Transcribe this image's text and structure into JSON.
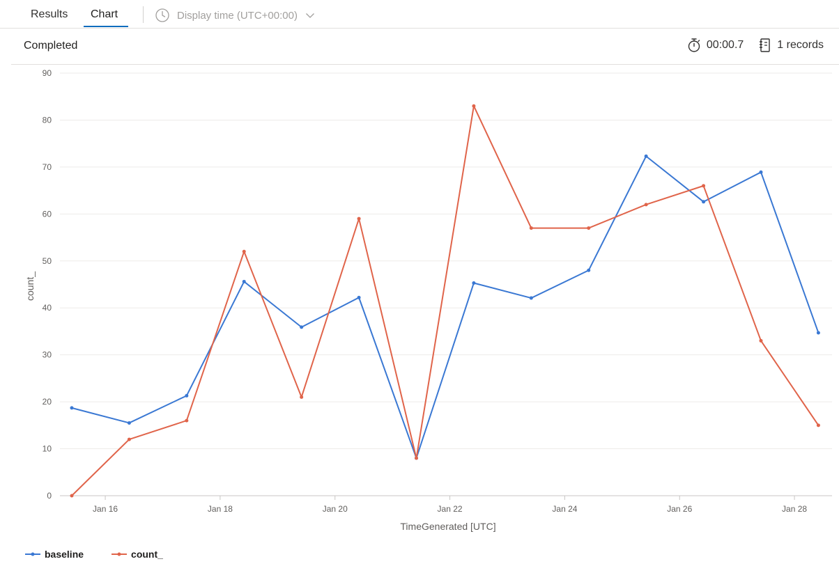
{
  "tabs": [
    {
      "label": "Results",
      "active": false
    },
    {
      "label": "Chart",
      "active": true
    }
  ],
  "display_time": {
    "label": "Display time (UTC+00:00)",
    "icon": "clock-icon"
  },
  "status": {
    "label": "Completed",
    "duration": "00:00.7",
    "records": "1 records",
    "duration_icon": "stopwatch-icon",
    "records_icon": "document-icon"
  },
  "colors": {
    "baseline": "#3a78d3",
    "count": "#e0644a",
    "accent": "#0f6cbd"
  },
  "chart_data": {
    "type": "line",
    "xlabel": "TimeGenerated [UTC]",
    "ylabel": "count_",
    "ylim": [
      0,
      90
    ],
    "yticks": [
      0,
      10,
      20,
      30,
      40,
      50,
      60,
      70,
      80,
      90
    ],
    "xlim": [
      "2024-01-15T10:00",
      "2024-01-28T12:30"
    ],
    "xticks": [
      {
        "date": "2024-01-16T00:00",
        "label": "Jan 16"
      },
      {
        "date": "2024-01-18T00:00",
        "label": "Jan 18"
      },
      {
        "date": "2024-01-20T00:00",
        "label": "Jan 20"
      },
      {
        "date": "2024-01-22T00:00",
        "label": "Jan 22"
      },
      {
        "date": "2024-01-24T00:00",
        "label": "Jan 24"
      },
      {
        "date": "2024-01-26T00:00",
        "label": "Jan 26"
      },
      {
        "date": "2024-01-28T00:00",
        "label": "Jan 28"
      }
    ],
    "x": [
      "2024-01-15T10:00",
      "2024-01-16T10:00",
      "2024-01-17T10:00",
      "2024-01-18T10:00",
      "2024-01-19T10:00",
      "2024-01-20T10:00",
      "2024-01-21T10:00",
      "2024-01-22T10:00",
      "2024-01-23T10:00",
      "2024-01-24T10:00",
      "2024-01-25T10:00",
      "2024-01-26T10:00",
      "2024-01-27T10:00",
      "2024-01-28T10:00"
    ],
    "grid": true,
    "legend": "bottom-left",
    "series": [
      {
        "name": "baseline",
        "values": [
          18.7,
          15.5,
          21.3,
          45.6,
          35.9,
          42.2,
          8.0,
          45.3,
          42.1,
          48.0,
          72.3,
          62.6,
          68.9,
          34.7
        ]
      },
      {
        "name": "count_",
        "values": [
          0,
          12,
          16,
          52,
          21,
          59,
          8,
          83,
          57,
          57,
          62,
          66,
          33,
          15
        ]
      }
    ]
  }
}
